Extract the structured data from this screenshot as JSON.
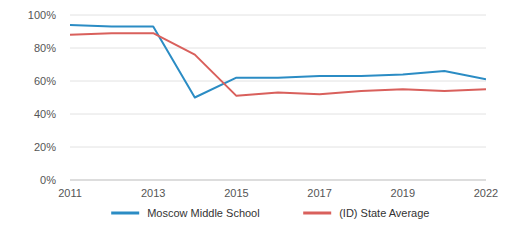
{
  "chart_data": {
    "type": "line",
    "categories": [
      "2011",
      null,
      "2013",
      null,
      "2015",
      null,
      "2017",
      null,
      "2019",
      null,
      "2022"
    ],
    "series": [
      {
        "name": "Moscow Middle School",
        "color": "#2b8cc4",
        "values": [
          94,
          93,
          93,
          50,
          62,
          62,
          63,
          63,
          64,
          66,
          61
        ]
      },
      {
        "name": "(ID) State Average",
        "color": "#d9605c",
        "values": [
          88,
          89,
          89,
          76,
          51,
          53,
          52,
          54,
          55,
          54,
          55
        ]
      }
    ],
    "ylim": [
      0,
      100
    ],
    "yticks": [
      {
        "value": 0,
        "label": "0%"
      },
      {
        "value": 20,
        "label": "20%"
      },
      {
        "value": 40,
        "label": "40%"
      },
      {
        "value": 60,
        "label": "60%"
      },
      {
        "value": 80,
        "label": "80%"
      },
      {
        "value": 100,
        "label": "100%"
      }
    ],
    "grid": true,
    "legend": "bottom"
  }
}
